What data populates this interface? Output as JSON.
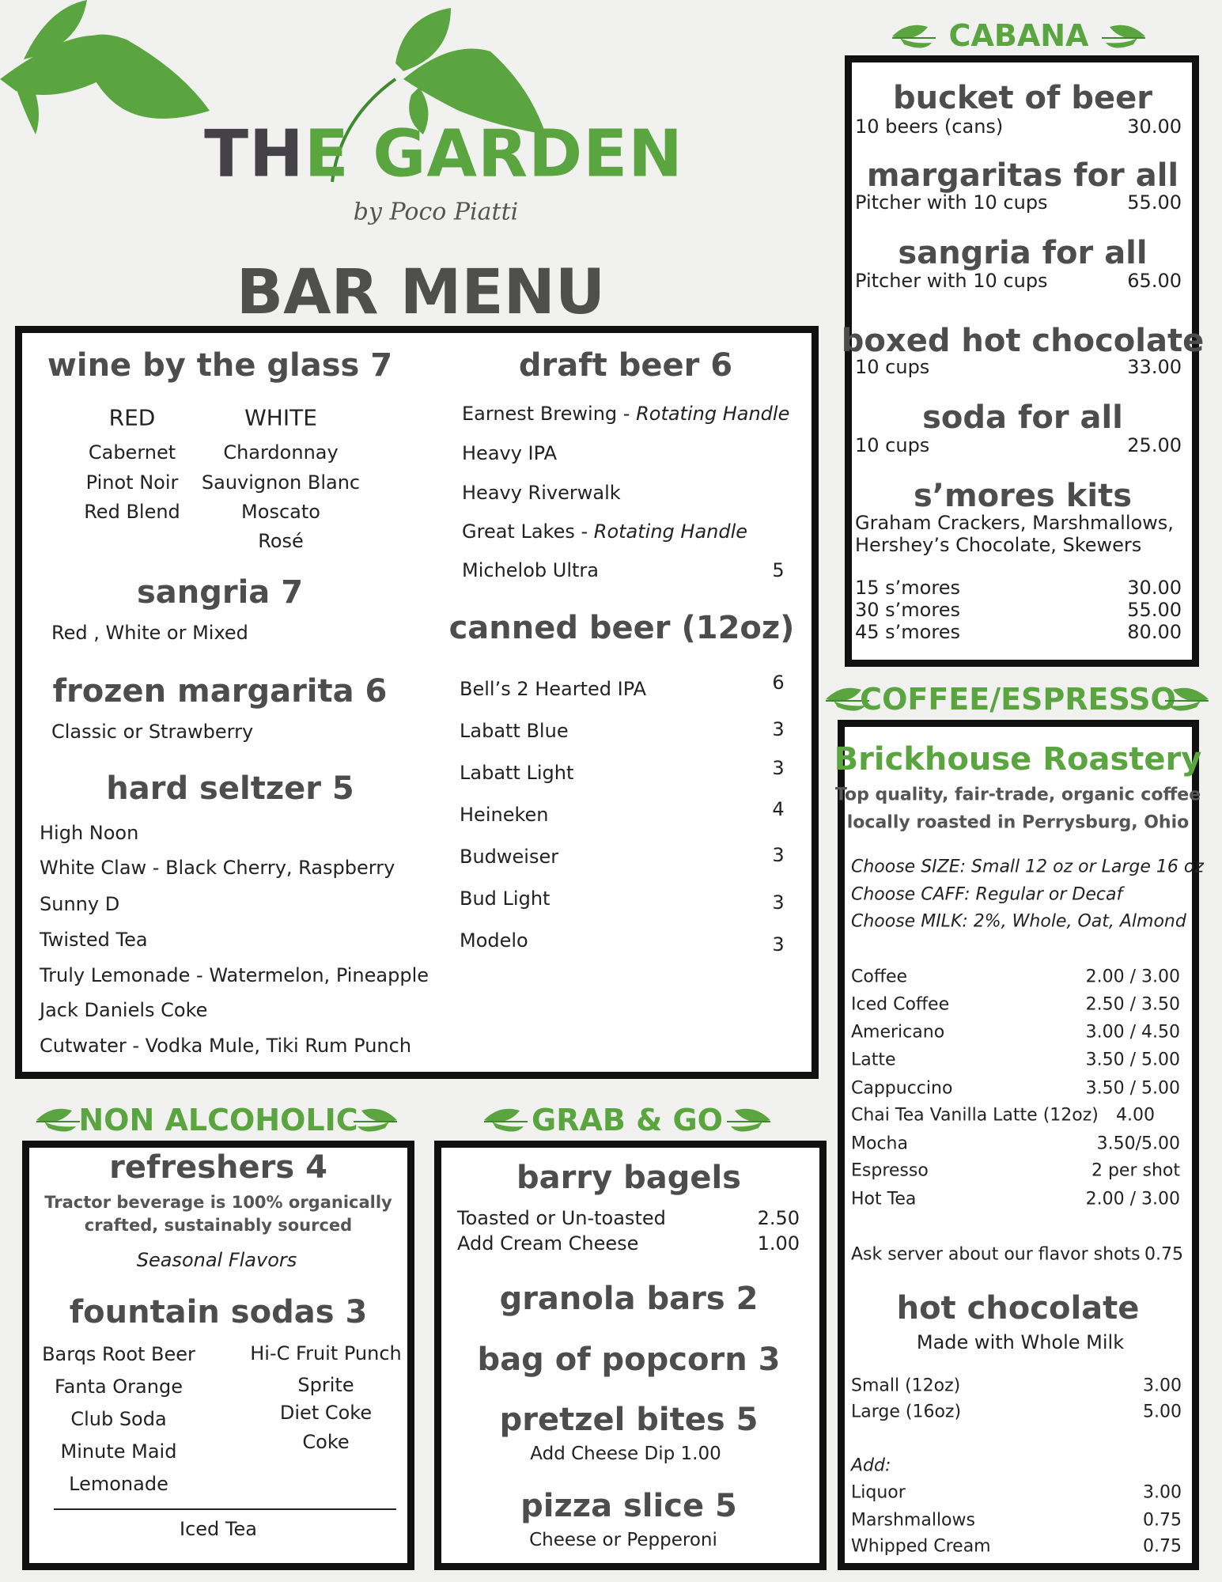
{
  "brand": {
    "title_dark": "TH",
    "title_green": "E GARDEN",
    "byline": "by Poco Piatti",
    "heading": "BAR MENU",
    "colors": {
      "green": "#5aa540",
      "dark": "#4d4d4d"
    }
  },
  "wine": {
    "title": "wine by the glass 7",
    "red_label": "RED",
    "white_label": "WHITE",
    "red": [
      "Cabernet",
      "Pinot Noir",
      "Red Blend"
    ],
    "white": [
      "Chardonnay",
      "Sauvignon Blanc",
      "Moscato",
      "Rosé"
    ]
  },
  "sangria": {
    "title": "sangria 7",
    "desc": "Red , White or Mixed"
  },
  "frozen": {
    "title": "frozen margarita 6",
    "desc": "Classic or Strawberry"
  },
  "seltzer": {
    "title": "hard seltzer  5",
    "items": [
      "High Noon",
      "White Claw - Black Cherry, Raspberry",
      "Sunny D",
      "Twisted Tea",
      "Truly Lemonade - Watermelon, Pineapple",
      "Jack Daniels Coke",
      "Cutwater - Vodka Mule, Tiki Rum Punch"
    ]
  },
  "draft": {
    "title": "draft beer 6",
    "items": [
      {
        "name": "Earnest Brewing - ",
        "note": "Rotating Handle",
        "price": ""
      },
      {
        "name": "Heavy IPA",
        "note": "",
        "price": ""
      },
      {
        "name": "Heavy Riverwalk",
        "note": "",
        "price": ""
      },
      {
        "name": "Great Lakes - ",
        "note": "Rotating Handle",
        "price": ""
      },
      {
        "name": "Michelob Ultra",
        "note": "",
        "price": "5"
      }
    ]
  },
  "canned": {
    "title": "canned beer (12oz)",
    "items": [
      {
        "name": "Bell’s 2 Hearted IPA",
        "price": "6"
      },
      {
        "name": "Labatt Blue",
        "price": "3"
      },
      {
        "name": "Labatt Light",
        "price": "3"
      },
      {
        "name": "Heineken",
        "price": "4"
      },
      {
        "name": "Budweiser",
        "price": "3"
      },
      {
        "name": "Bud Light",
        "price": "3"
      },
      {
        "name": "Modelo",
        "price": "3"
      }
    ]
  },
  "cabana": {
    "header": "CABANA",
    "items": [
      {
        "title": "bucket of beer",
        "desc": "10 beers (cans)",
        "price": "30.00"
      },
      {
        "title": "margaritas for all",
        "desc": "Pitcher with 10 cups",
        "price": "55.00"
      },
      {
        "title": "sangria for all",
        "desc": "Pitcher with 10 cups",
        "price": "65.00"
      },
      {
        "title": "boxed hot chocolate",
        "desc": "10 cups",
        "price": "33.00"
      },
      {
        "title": "soda for all",
        "desc": "10 cups",
        "price": "25.00"
      }
    ],
    "smores": {
      "title": "s’mores kits",
      "desc1": "Graham Crackers, Marshmallows,",
      "desc2": "Hershey’s Chocolate, Skewers",
      "options": [
        {
          "name": "15 s’mores",
          "price": "30.00"
        },
        {
          "name": "30 s’mores",
          "price": "55.00"
        },
        {
          "name": "45 s’mores",
          "price": "80.00"
        }
      ]
    }
  },
  "coffee": {
    "header": "COFFEE/ESPRESSO",
    "roaster": "Brickhouse Roastery",
    "tag1": "Top quality, fair-trade, organic coffee",
    "tag2": "locally roasted in Perrysburg, Ohio",
    "choices": [
      "Choose SIZE: Small 12 oz or Large 16 oz",
      "Choose CAFF: Regular or Decaf",
      "Choose MILK:  2%, Whole, Oat, Almond"
    ],
    "items": [
      {
        "name": "Coffee",
        "price": "2.00 / 3.00"
      },
      {
        "name": "Iced Coffee",
        "price": "2.50 / 3.50"
      },
      {
        "name": "Americano",
        "price": "3.00 / 4.50"
      },
      {
        "name": "Latte",
        "price": "3.50 / 5.00"
      },
      {
        "name": "Cappuccino",
        "price": "3.50 / 5.00"
      },
      {
        "name": "Chai Tea Vanilla Latte (12oz)",
        "price": "4.00"
      },
      {
        "name": "Mocha",
        "price": "3.50/5.00"
      },
      {
        "name": "Espresso",
        "price": "2 per shot"
      },
      {
        "name": "Hot Tea",
        "price": "2.00 / 3.00"
      }
    ],
    "flavor": {
      "name": "Ask server about our flavor shots",
      "price": "0.75"
    },
    "hot_choc": {
      "title": "hot chocolate",
      "desc": "Made with Whole Milk",
      "sizes": [
        {
          "name": "Small (12oz)",
          "price": "3.00"
        },
        {
          "name": "Large (16oz)",
          "price": "5.00"
        }
      ],
      "add_label": "Add:",
      "adds": [
        {
          "name": "Liquor",
          "price": "3.00"
        },
        {
          "name": "Marshmallows",
          "price": "0.75"
        },
        {
          "name": "Whipped Cream",
          "price": "0.75"
        }
      ]
    }
  },
  "nonalc": {
    "header": "NON ALCOHOLIC",
    "refreshers": "refreshers 4",
    "r1": "Tractor beverage is 100% organically",
    "r2": "crafted, sustainably sourced",
    "seasonal": "Seasonal Flavors",
    "fountain": "fountain sodas 3",
    "left": [
      "Barqs Root Beer",
      "Fanta Orange",
      "Club Soda",
      "Minute Maid",
      "Lemonade"
    ],
    "right": [
      "Hi-C Fruit Punch",
      "Sprite",
      "Diet Coke",
      "Coke"
    ],
    "iced_tea": "Iced Tea"
  },
  "grab": {
    "header": "GRAB & GO",
    "bagels": "barry bagels",
    "b1": {
      "name": "Toasted or Un-toasted",
      "price": "2.50"
    },
    "b2": {
      "name": "Add Cream Cheese",
      "price": "1.00"
    },
    "granola": "granola bars  2",
    "popcorn": "bag of popcorn  3",
    "pretzel": "pretzel bites  5",
    "pretzel_desc": "Add Cheese Dip 1.00",
    "pizza": "pizza slice  5",
    "pizza_desc": "Cheese or Pepperoni"
  }
}
